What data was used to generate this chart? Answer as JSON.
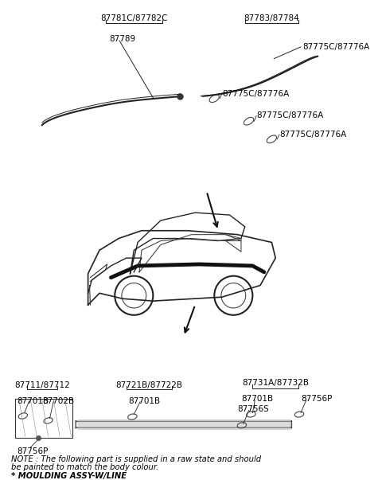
{
  "bg_color": "#ffffff",
  "fig_width": 4.8,
  "fig_height": 6.03,
  "dpi": 100,
  "note_line1": "NOTE : The following part is supplied in a raw state and should",
  "note_line2": "be painted to match the body colour.",
  "note_line3": "* MOULDING ASSY-W/LINE",
  "labels": {
    "top_left_group": "87781C/87782C",
    "top_right_group": "87783/87784",
    "top_left_sub": "87789",
    "top_right_sub": "87775C/87776A",
    "clip1": "87775C/87776A",
    "clip2": "87775C/87776A",
    "clip3": "87775C/87776A",
    "bot_left_group": "87711/87712",
    "bot_mid_group": "87721B/87722B",
    "bot_right_group": "87731A/87732B",
    "bot_left_701": "87701B",
    "bot_left_702": "87702B",
    "bot_left_756p": "87756P",
    "bot_mid_701": "87701B",
    "bot_right_701": "87701B",
    "bot_right_756s": "87756S",
    "bot_right_756p": "87756P"
  }
}
